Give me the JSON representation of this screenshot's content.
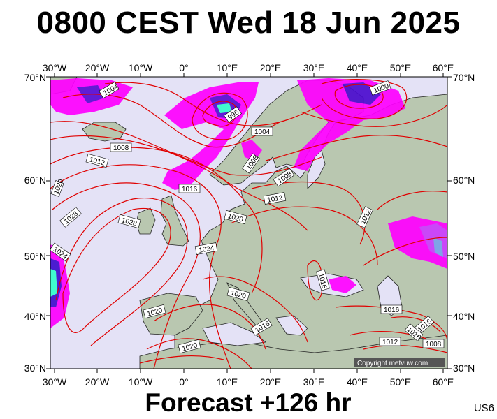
{
  "title": "0800 CEST Wed 18 Jun 2025",
  "forecast_label": "Forecast +126 hr",
  "model_code": "US6",
  "copyright": "Copyright metvuw.com",
  "colors": {
    "sea": "#e4e2f6",
    "land": "#b9c7b0",
    "isobar": "#e00000",
    "precip": "#ff00ff",
    "precip_heavy": "#1010c0",
    "precip_core": "#33ffcc"
  },
  "axes": {
    "lon_labels": [
      "30°W",
      "20°W",
      "10°W",
      "0°",
      "10°E",
      "20°E",
      "30°E",
      "40°E",
      "50°E",
      "60°E"
    ],
    "lat_labels_left": [
      "70°N",
      "60°N",
      "50°N",
      "40°N",
      "30°N"
    ],
    "lat_labels_right": [
      "70°N",
      "60°N",
      "50°N",
      "40°N",
      "30°N"
    ]
  },
  "isobar_labels": [
    "1004",
    "996",
    "1000",
    "1004",
    "1008",
    "1012",
    "1008",
    "1008",
    "1016",
    "1012",
    "1020",
    "1012",
    "1028",
    "1028",
    "1020",
    "1024",
    "1024",
    "1016",
    "1020",
    "1020",
    "1016",
    "1016",
    "1016",
    "1012",
    "1016",
    "1008",
    "1020"
  ]
}
